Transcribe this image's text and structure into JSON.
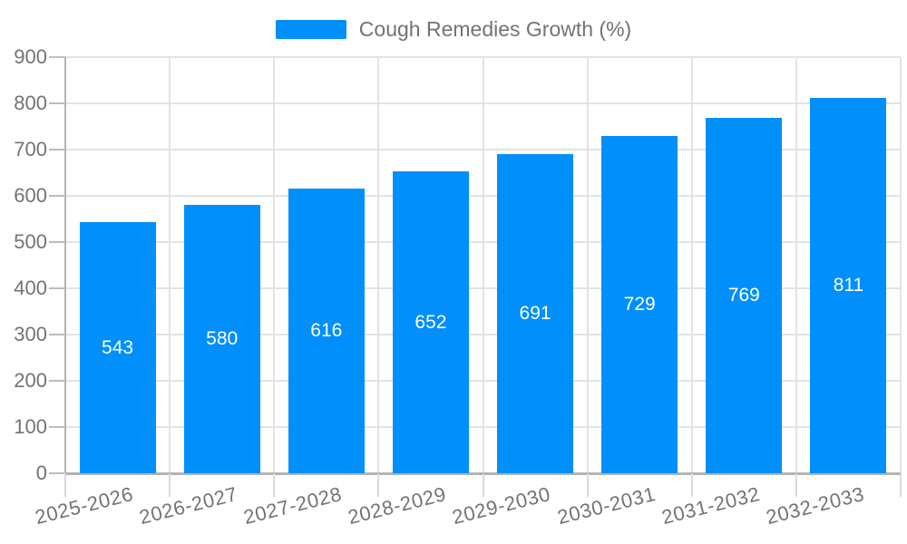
{
  "legend": {
    "label": "Cough Remedies Growth (%)"
  },
  "chart_data": {
    "type": "bar",
    "title": "Cough Remedies Growth (%)",
    "categories": [
      "2025-2026",
      "2026-2027",
      "2027-2028",
      "2028-2029",
      "2029-2030",
      "2030-2031",
      "2031-2032",
      "2032-2033"
    ],
    "series": [
      {
        "name": "Cough Remedies Growth (%)",
        "values": [
          543,
          580,
          616,
          652,
          691,
          729,
          769,
          811
        ]
      }
    ],
    "xlabel": "",
    "ylabel": "",
    "ylim": [
      0,
      900
    ],
    "ytick_step": 100,
    "yticks": [
      0,
      100,
      200,
      300,
      400,
      500,
      600,
      700,
      800,
      900
    ],
    "grid": true,
    "legend_position": "top",
    "data_labels": "centered-in-bar",
    "colors": {
      "bar": "#008FFB",
      "data_label": "#ffffff",
      "grid_line": "#e3e3e3",
      "axis_line": "#b3b3b3",
      "tick_mark": "#bdbdbd",
      "x_tick_mark": "#d9d9d9",
      "text": "#737373"
    }
  }
}
